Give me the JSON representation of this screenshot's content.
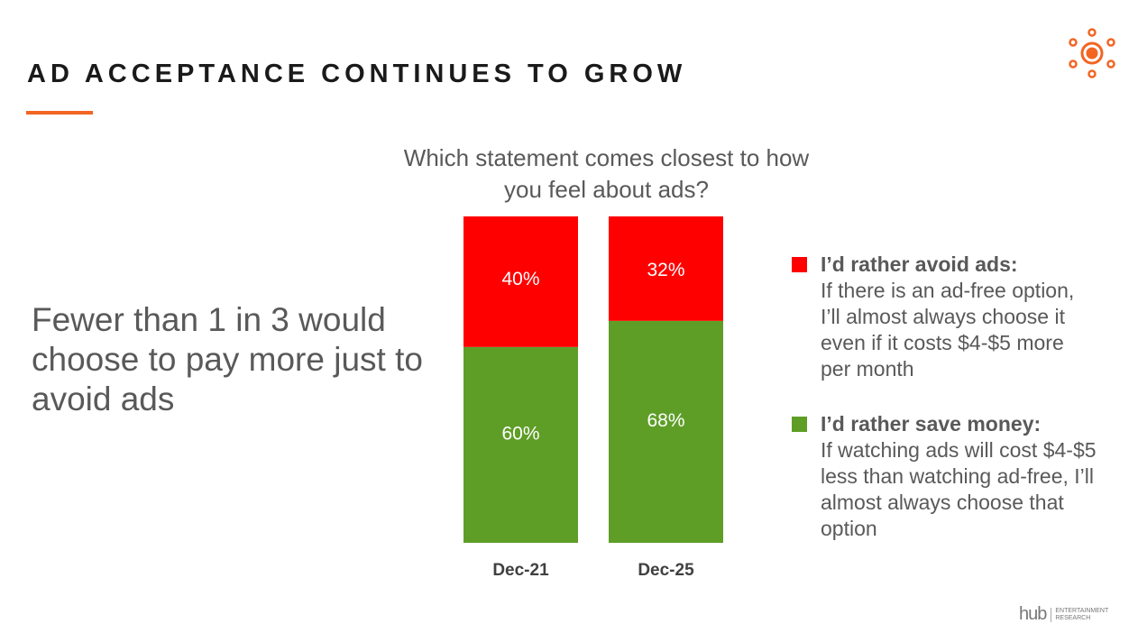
{
  "header": {
    "title": "AD ACCEPTANCE CONTINUES TO GROW",
    "logo_icon": "location-pins-sun-icon",
    "accent_color": "#f26522"
  },
  "takeaway": "Fewer than 1 in 3 would choose to pay more just to avoid ads",
  "chart_data": {
    "type": "bar",
    "stacked": true,
    "title": "Which statement comes closest to how you feel about ads?",
    "categories": [
      "Dec-21",
      "Dec-25"
    ],
    "series": [
      {
        "name": "I'd rather save money",
        "values": [
          60,
          68
        ],
        "labels": [
          "60%",
          "68%"
        ],
        "color": "#5e9e27"
      },
      {
        "name": "I'd rather avoid ads",
        "values": [
          40,
          32
        ],
        "labels": [
          "40%",
          "32%"
        ],
        "color": "#ff0000"
      }
    ],
    "ylim": [
      0,
      100
    ],
    "legend_position": "right"
  },
  "legend": [
    {
      "heading": "I’d rather avoid ads:",
      "text": "If there is an ad-free option, I’ll almost always choose it even if it costs $4-$5 more per month",
      "color": "#ff0000"
    },
    {
      "heading": "I’d rather save money:",
      "text": "If watching ads will cost $4-$5 less than watching ad-free, I’ll almost always choose that option",
      "color": "#5e9e27"
    }
  ],
  "footer": {
    "brand": "hub",
    "brand_sub1": "ENTERTAINMENT",
    "brand_sub2": "RESEARCH"
  }
}
